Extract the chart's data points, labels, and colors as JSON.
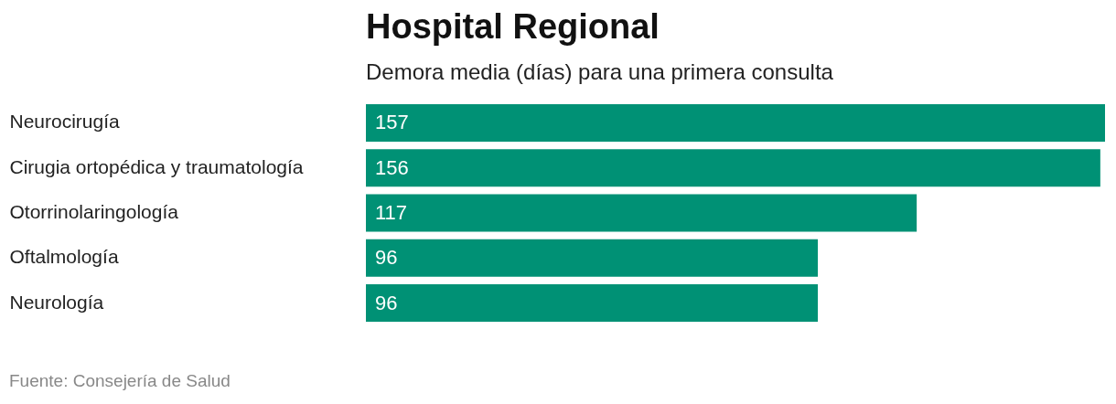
{
  "chart_data": {
    "type": "bar",
    "orientation": "horizontal",
    "title": "Hospital Regional",
    "subtitle": "Demora media (días) para una primera consulta",
    "categories": [
      "Neurocirugía",
      "Cirugia ortopédica y traumatología",
      "Otorrinolaringología",
      "Oftalmología",
      "Neurología"
    ],
    "values": [
      157,
      156,
      117,
      96,
      96
    ],
    "color": "#009175",
    "data_labels": true,
    "annotations": [
      "Fuente: Consejería de Salud"
    ]
  }
}
